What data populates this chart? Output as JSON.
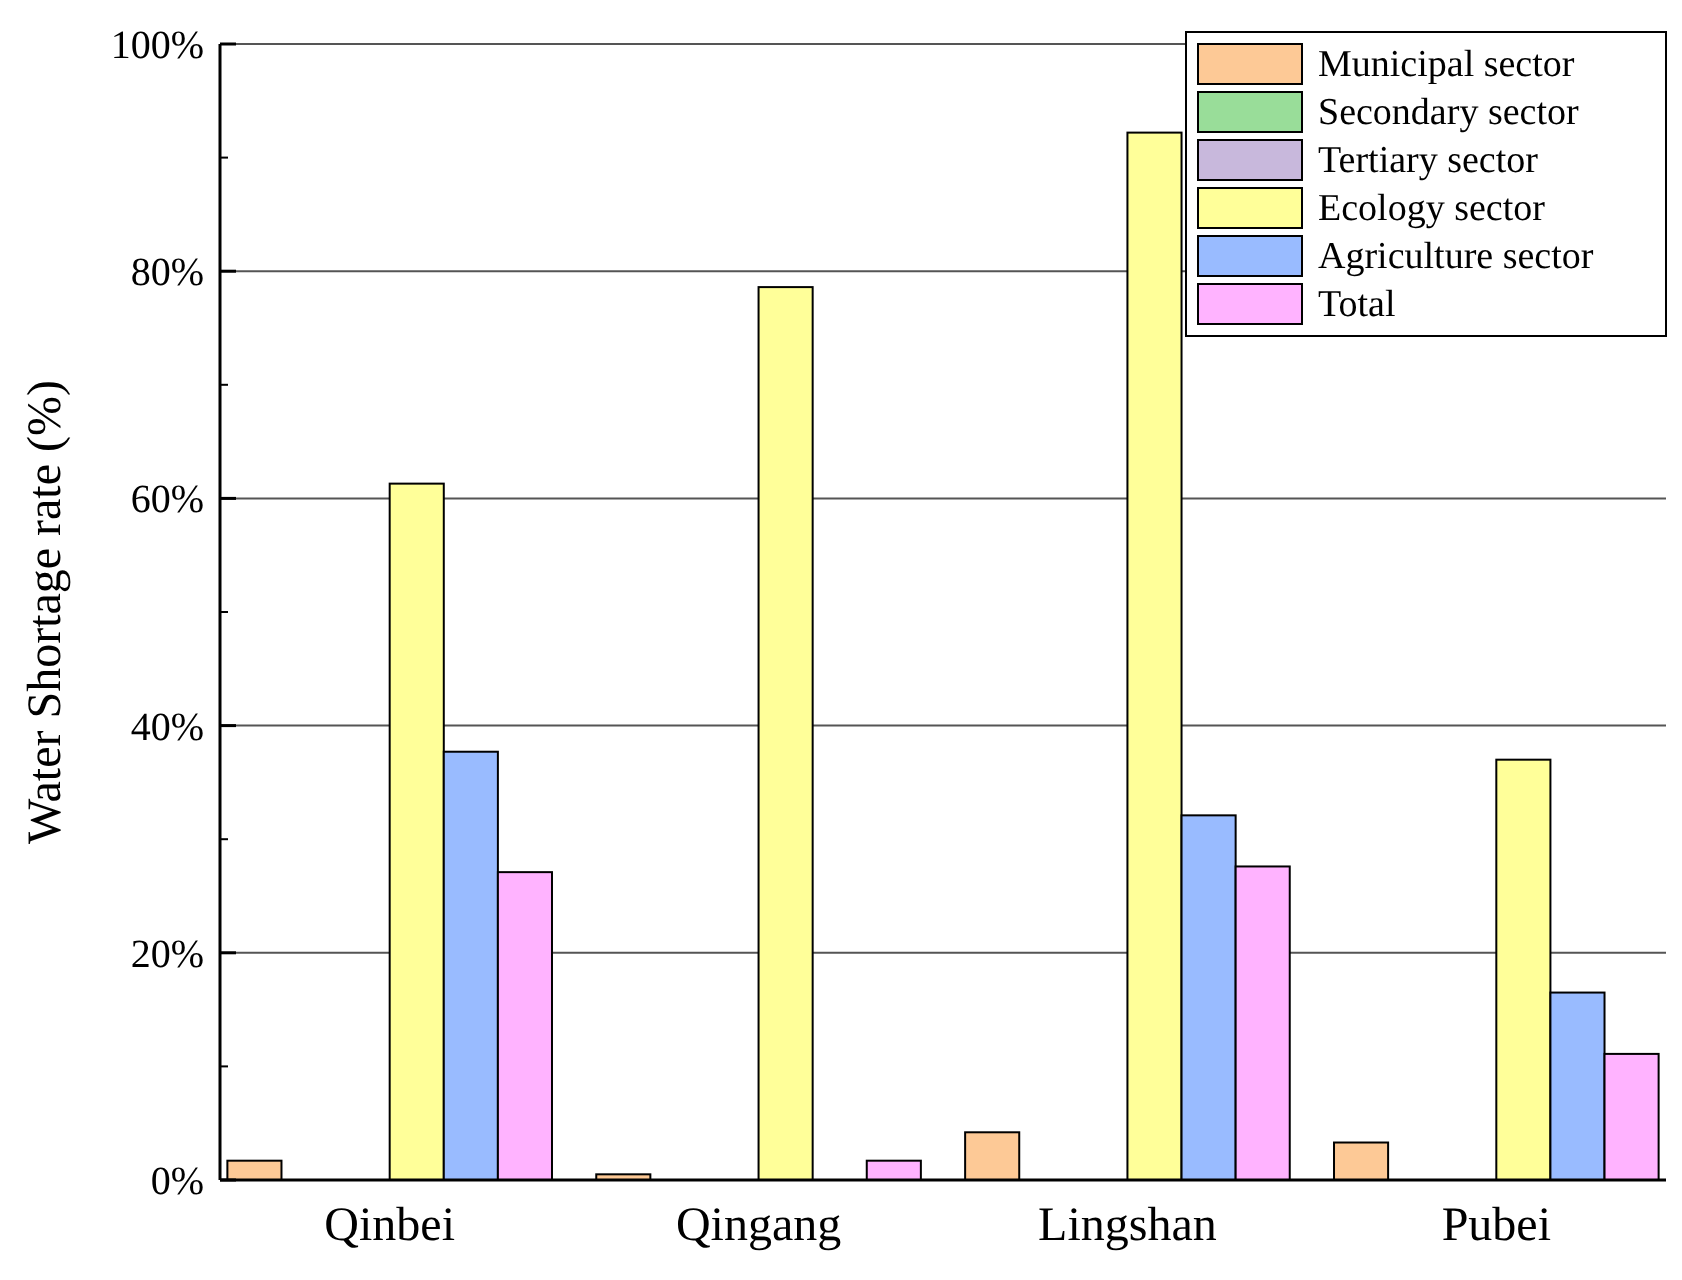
{
  "chart_data": {
    "type": "bar",
    "ylabel": "Water Shortage rate (%)",
    "categories": [
      "Qinbei",
      "Qingang",
      "Lingshan",
      "Pubei"
    ],
    "series": [
      {
        "name": "Municipal sector",
        "color": "#fdc996",
        "values": [
          1.7,
          0.5,
          4.2,
          3.3
        ]
      },
      {
        "name": "Secondary sector",
        "color": "#99dd99",
        "values": [
          0,
          0,
          0,
          0
        ]
      },
      {
        "name": "Tertiary sector",
        "color": "#c8b8dc",
        "values": [
          0,
          0,
          0,
          0
        ]
      },
      {
        "name": "Ecology sector",
        "color": "#ffff99",
        "values": [
          61.3,
          78.6,
          92.2,
          37
        ]
      },
      {
        "name": "Agriculture sector",
        "color": "#99bbff",
        "values": [
          37.7,
          0,
          32.1,
          16.5
        ]
      },
      {
        "name": "Total",
        "color": "#ffb3ff",
        "values": [
          27.1,
          1.7,
          27.6,
          11.1
        ]
      }
    ],
    "ylim": [
      0,
      100
    ],
    "yticks": [
      {
        "value": 0,
        "label": "0%"
      },
      {
        "value": 20,
        "label": "20%"
      },
      {
        "value": 40,
        "label": "40%"
      },
      {
        "value": 60,
        "label": "60%"
      },
      {
        "value": 80,
        "label": "80%"
      },
      {
        "value": 100,
        "label": "100%"
      }
    ],
    "grid": "y",
    "legend": "top right"
  }
}
